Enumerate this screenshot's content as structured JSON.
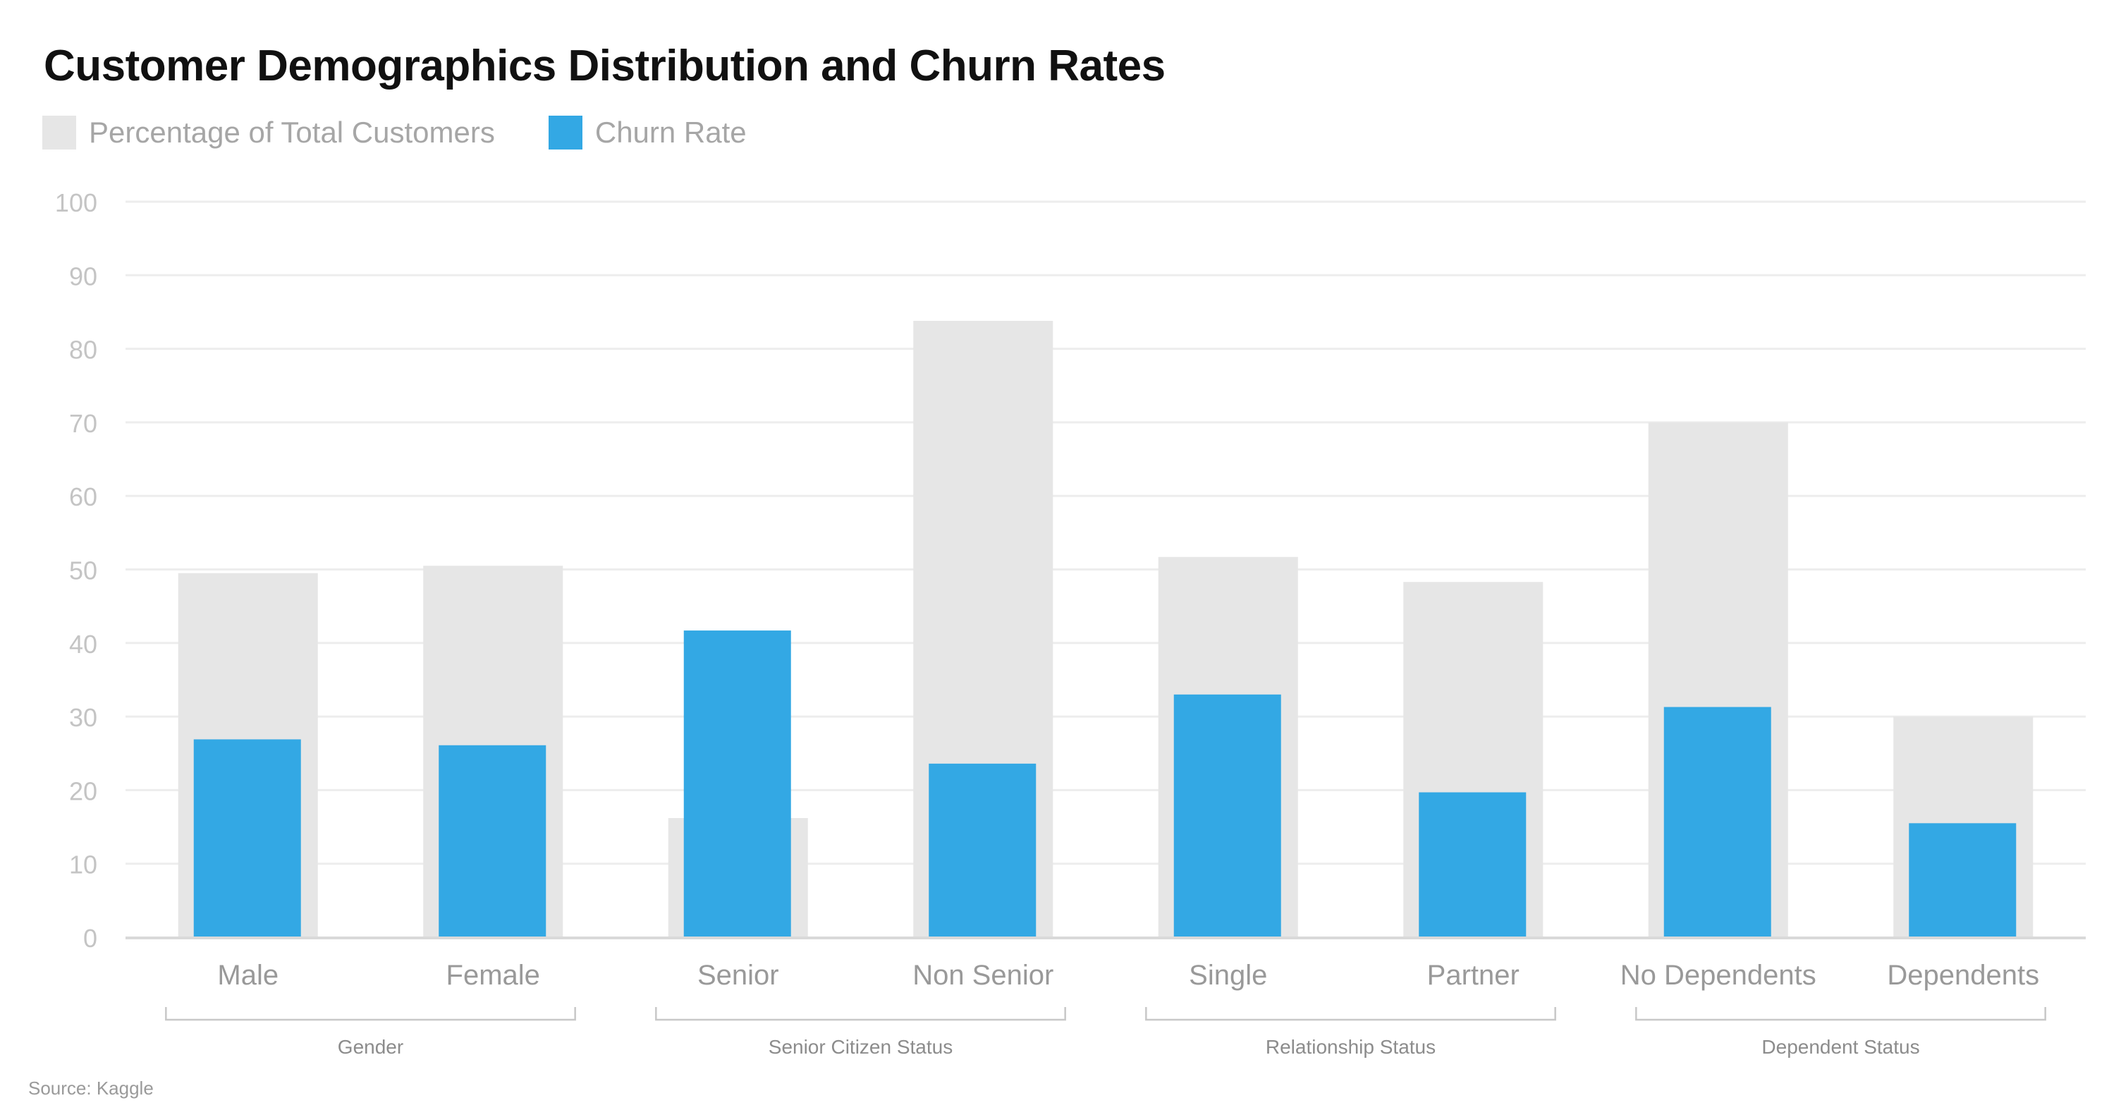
{
  "title": "Customer Demographics Distribution and Churn Rates",
  "source": "Source: Kaggle",
  "legend": {
    "placement": "top-left",
    "items": [
      {
        "label": "Percentage of Total Customers",
        "color": "#e6e6e6"
      },
      {
        "label": "Churn Rate",
        "color": "#33a8e4"
      }
    ]
  },
  "chart_data": {
    "type": "bar",
    "title": "Customer Demographics Distribution and Churn Rates",
    "xlabel": "",
    "ylabel": "",
    "ylim": [
      0,
      100
    ],
    "yticks": [
      0,
      10,
      20,
      30,
      40,
      50,
      60,
      70,
      80,
      90,
      100
    ],
    "grid": true,
    "categories": [
      "Male",
      "Female",
      "Senior",
      "Non Senior",
      "Single",
      "Partner",
      "No Dependents",
      "Dependents"
    ],
    "groups": [
      {
        "label": "Gender",
        "categories": [
          "Male",
          "Female"
        ]
      },
      {
        "label": "Senior Citizen Status",
        "categories": [
          "Senior",
          "Non Senior"
        ]
      },
      {
        "label": "Relationship Status",
        "categories": [
          "Single",
          "Partner"
        ]
      },
      {
        "label": "Dependent Status",
        "categories": [
          "No Dependents",
          "Dependents"
        ]
      }
    ],
    "series": [
      {
        "name": "Percentage of Total Customers",
        "color": "#e6e6e6",
        "values": [
          49.5,
          50.5,
          16.2,
          83.8,
          51.7,
          48.3,
          70.0,
          30.0
        ]
      },
      {
        "name": "Churn Rate",
        "color": "#33a8e4",
        "values": [
          26.9,
          26.1,
          41.7,
          23.6,
          33.0,
          19.7,
          31.3,
          15.5
        ]
      }
    ]
  }
}
